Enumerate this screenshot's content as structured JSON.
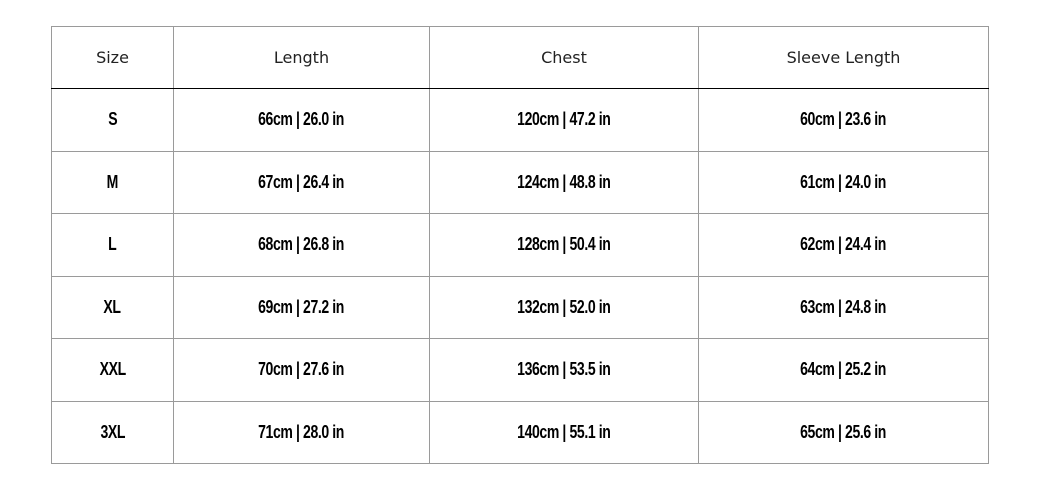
{
  "headers": [
    "Size",
    "Length",
    "Chest",
    "Sleeve Length"
  ],
  "rows": [
    [
      "S",
      "66cm | 26.0 in",
      "120cm | 47.2 in",
      "60cm | 23.6 in"
    ],
    [
      "M",
      "67cm | 26.4 in",
      "124cm | 48.8 in",
      "61cm | 24.0 in"
    ],
    [
      "L",
      "68cm | 26.8 in",
      "128cm | 50.4 in",
      "62cm | 24.4 in"
    ],
    [
      "XL",
      "69cm | 27.2 in",
      "132cm | 52.0 in",
      "63cm | 24.8 in"
    ],
    [
      "XXL",
      "70cm | 27.6 in",
      "136cm | 53.5 in",
      "64cm | 25.2 in"
    ],
    [
      "3XL",
      "71cm | 28.0 in",
      "140cm | 55.1 in",
      "65cm | 25.6 in"
    ]
  ]
}
